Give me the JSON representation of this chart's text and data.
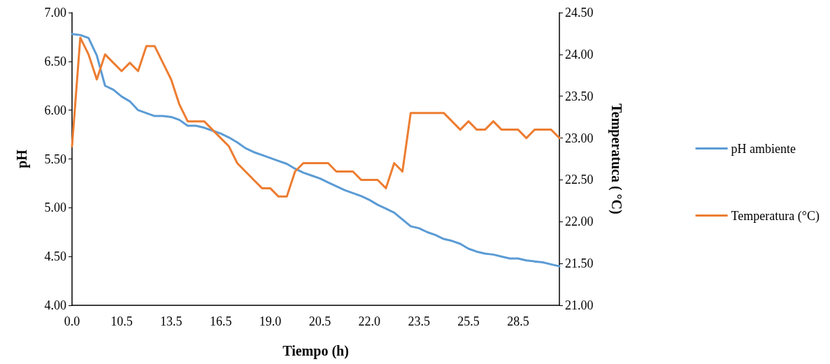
{
  "chart_data": {
    "type": "line",
    "xlabel": "Tiempo (h)",
    "ylabel": "pH",
    "y2label": "Temperatuca ( °C)",
    "categories": [
      "0.0",
      null,
      null,
      null,
      null,
      null,
      "10.5",
      null,
      null,
      null,
      null,
      null,
      "13.5",
      null,
      null,
      null,
      null,
      null,
      "16.5",
      null,
      null,
      null,
      null,
      null,
      "19.0",
      null,
      null,
      null,
      null,
      null,
      "20.5",
      null,
      null,
      null,
      null,
      null,
      "22.0",
      null,
      null,
      null,
      null,
      null,
      "23.5",
      null,
      null,
      null,
      null,
      null,
      "25.5",
      null,
      null,
      null,
      null,
      null,
      "28.5",
      null,
      null,
      null,
      null,
      null
    ],
    "series": [
      {
        "name": "pH ambiente",
        "color": "#5b9bd5",
        "values": [
          6.78,
          6.77,
          6.74,
          6.56,
          6.25,
          6.21,
          6.14,
          6.09,
          6.0,
          5.97,
          5.94,
          5.94,
          5.93,
          5.9,
          5.84,
          5.84,
          5.82,
          5.79,
          5.76,
          5.72,
          5.67,
          5.61,
          5.57,
          5.54,
          5.51,
          5.48,
          5.45,
          5.4,
          5.36,
          5.33,
          5.3,
          5.26,
          5.22,
          5.18,
          5.15,
          5.12,
          5.08,
          5.03,
          4.99,
          4.95,
          4.88,
          4.81,
          4.79,
          4.75,
          4.72,
          4.68,
          4.66,
          4.63,
          4.58,
          4.55,
          4.53,
          4.52,
          4.5,
          4.48,
          4.48,
          4.46,
          4.45,
          4.44,
          4.42,
          4.4
        ]
      },
      {
        "name": "Temperatura (°C)",
        "color": "#ed7d31",
        "axis": "y2",
        "values": [
          22.9,
          24.2,
          24.0,
          23.7,
          24.0,
          23.9,
          23.8,
          23.9,
          23.8,
          24.1,
          24.1,
          23.9,
          23.7,
          23.4,
          23.2,
          23.2,
          23.2,
          23.1,
          23.0,
          22.9,
          22.7,
          22.6,
          22.5,
          22.4,
          22.4,
          22.3,
          22.3,
          22.6,
          22.7,
          22.7,
          22.7,
          22.7,
          22.6,
          22.6,
          22.6,
          22.5,
          22.5,
          22.5,
          22.4,
          22.7,
          22.6,
          23.3,
          23.3,
          23.3,
          23.3,
          23.3,
          23.2,
          23.1,
          23.2,
          23.1,
          23.1,
          23.2,
          23.1,
          23.1,
          23.1,
          23.0,
          23.1,
          23.1,
          23.1,
          23.0
        ]
      }
    ],
    "ylim": [
      4,
      7
    ],
    "yticks": [
      {
        "value": 4,
        "label": "4.00"
      },
      {
        "value": 4.5,
        "label": "4.50"
      },
      {
        "value": 5,
        "label": "5.00"
      },
      {
        "value": 5.5,
        "label": "5.50"
      },
      {
        "value": 6,
        "label": "6.00"
      },
      {
        "value": 6.5,
        "label": "6.50"
      },
      {
        "value": 7,
        "label": "7.00"
      }
    ],
    "y2lim": [
      21,
      24.5
    ],
    "y2ticks": [
      {
        "value": 21,
        "label": "21.00"
      },
      {
        "value": 21.5,
        "label": "21.50"
      },
      {
        "value": 22,
        "label": "22.00"
      },
      {
        "value": 22.5,
        "label": "22.50"
      },
      {
        "value": 23,
        "label": "23.00"
      },
      {
        "value": 23.5,
        "label": "23.50"
      },
      {
        "value": 24,
        "label": "24.00"
      },
      {
        "value": 24.5,
        "label": "24.50"
      }
    ],
    "grid": false,
    "legend": "right",
    "marker": "none",
    "line_style": "solid"
  }
}
